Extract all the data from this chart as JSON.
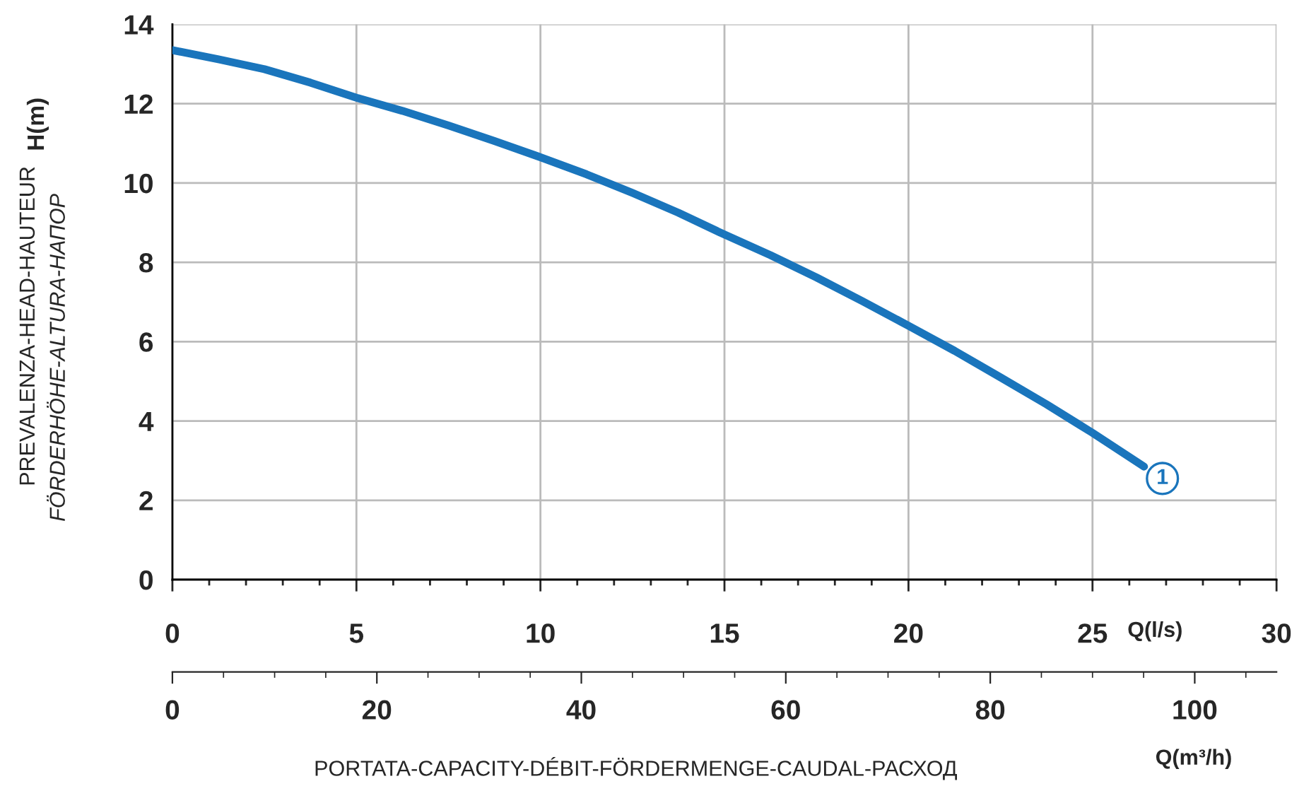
{
  "chart_data": {
    "type": "line",
    "x": [
      0,
      1.25,
      2.5,
      3.75,
      5,
      6.25,
      7.5,
      8.75,
      10,
      11.25,
      12.5,
      13.75,
      15,
      16.25,
      17.5,
      18.75,
      20,
      21.25,
      22.5,
      23.75,
      25,
      26.4
    ],
    "series": [
      {
        "color": "#1a75bc",
        "values": [
          13.35,
          13.12,
          12.87,
          12.53,
          12.15,
          11.82,
          11.45,
          11.06,
          10.65,
          10.22,
          9.75,
          9.25,
          8.7,
          8.18,
          7.62,
          7.02,
          6.4,
          5.77,
          5.1,
          4.42,
          3.7,
          2.85
        ]
      }
    ],
    "xlim": [
      0,
      30
    ],
    "xticks": [
      0,
      5,
      10,
      15,
      20,
      25,
      30
    ],
    "x2lim": [
      0,
      108
    ],
    "x2ticks": [
      0,
      20,
      40,
      60,
      80,
      100
    ],
    "ylim": [
      0,
      14
    ],
    "yticks": [
      0,
      2,
      4,
      6,
      8,
      10,
      12,
      14
    ],
    "xlabel": "Q(l/s)",
    "x2label": "Q(m³/h)",
    "ylabel": "H(m)",
    "annotations": [
      "PREVALENZA-HEAD-HAUTEUR",
      "FÖRDERHÖHE-ALTURA-НАПОР",
      "PORTATA-CAPACITY-DÉBIT-FÖRDERMENGE-CAUDAL-РАСХОД",
      {
        "text": "1",
        "x": 26.9,
        "y": 2.55
      }
    ],
    "grid": true,
    "marker": "none",
    "line_style": "solid",
    "legend": false
  }
}
